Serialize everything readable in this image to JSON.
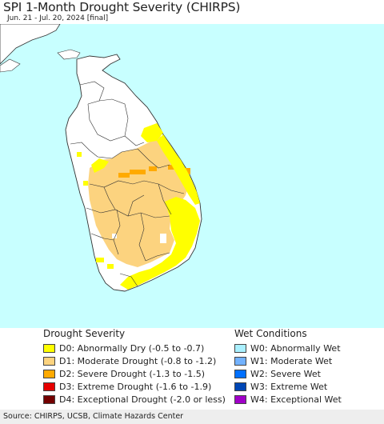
{
  "title": "SPI 1-Month Drought Severity (CHIRPS)",
  "subtitle": "Jun. 21 - Jul. 20, 2024 [final]",
  "legend": {
    "drought": {
      "heading": "Drought Severity",
      "items": [
        {
          "label": "D0: Abnormally Dry (-0.5 to -0.7)",
          "color": "#ffff00"
        },
        {
          "label": "D1: Moderate Drought (-0.8 to -1.2)",
          "color": "#fcd37f"
        },
        {
          "label": "D2: Severe Drought (-1.3 to -1.5)",
          "color": "#ffaa00"
        },
        {
          "label": "D3: Extreme Drought (-1.6 to -1.9)",
          "color": "#e60000"
        },
        {
          "label": "D4: Exceptional Drought (-2.0 or less)",
          "color": "#730000"
        }
      ]
    },
    "wet": {
      "heading": "Wet Conditions",
      "items": [
        {
          "label": "W0: Abnormally Wet",
          "color": "#aaf0ff"
        },
        {
          "label": "W1: Moderate Wet",
          "color": "#73b2ff"
        },
        {
          "label": "W2: Severe Wet",
          "color": "#0070ff"
        },
        {
          "label": "W3: Extreme Wet",
          "color": "#0046b4"
        },
        {
          "label": "W4: Exceptional Wet",
          "color": "#a000c8"
        }
      ]
    }
  },
  "footer": "Source: CHIRPS, UCSB, Climate Hazards Center",
  "colors": {
    "sea": "#c8ffff",
    "land": "#ffffff",
    "d0": "#ffff00",
    "d1": "#fcd37f",
    "d2": "#ffaa00",
    "border": "#333333"
  }
}
